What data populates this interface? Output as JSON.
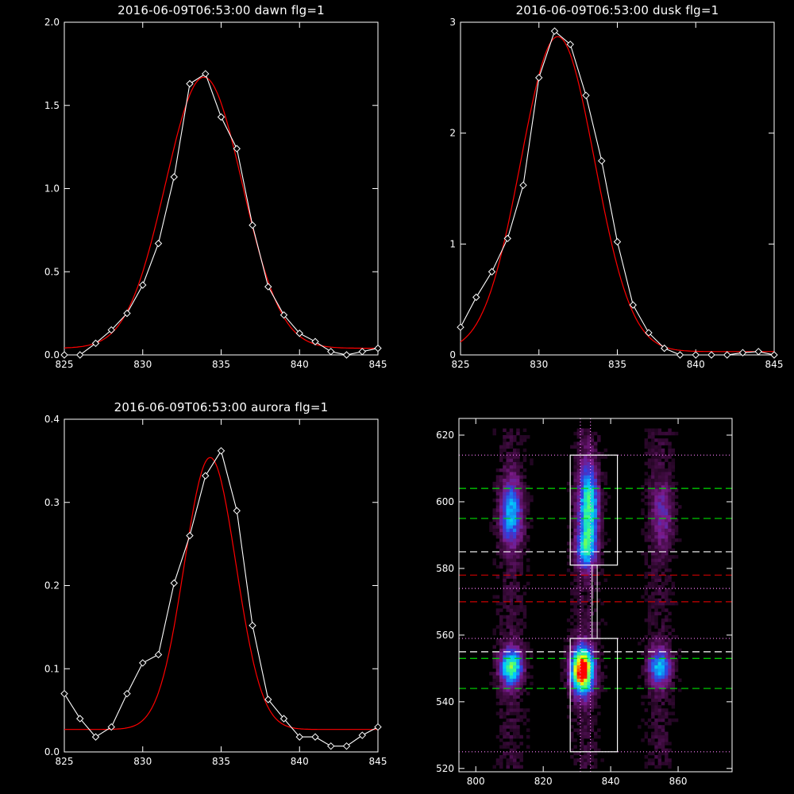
{
  "chart_data": [
    {
      "id": "dawn",
      "type": "line",
      "title": "2016-06-09T06:53:00 dawn flg=1",
      "xlim": [
        825,
        845
      ],
      "ylim": [
        0,
        2.0
      ],
      "xticks": [
        825,
        830,
        835,
        840,
        845
      ],
      "xtick_labels": [
        "825",
        "830",
        "835",
        "840",
        "845"
      ],
      "yticks": [
        0,
        0.5,
        1.0,
        1.5,
        2.0
      ],
      "ytick_labels": [
        "0.0",
        "0.5",
        "1.0",
        "1.5",
        "2.0"
      ],
      "series": [
        {
          "role": "observed",
          "color": "#ffffff",
          "marker": "diamond",
          "x": [
            825,
            826,
            827,
            828,
            829,
            830,
            831,
            832,
            833,
            834,
            835,
            836,
            837,
            838,
            839,
            840,
            841,
            842,
            843,
            844,
            845
          ],
          "y": [
            0.0,
            0.0,
            0.07,
            0.15,
            0.25,
            0.42,
            0.67,
            1.07,
            1.63,
            1.69,
            1.43,
            1.24,
            0.78,
            0.41,
            0.24,
            0.13,
            0.08,
            0.02,
            0.0,
            0.02,
            0.04
          ]
        },
        {
          "role": "fit",
          "color": "#ff0000",
          "model": "gaussian",
          "amplitude": 1.63,
          "center": 833.9,
          "sigma": 2.45,
          "baseline": 0.04
        }
      ]
    },
    {
      "id": "dusk",
      "type": "line",
      "title": "2016-06-09T06:53:00 dusk flg=1",
      "xlim": [
        825,
        845
      ],
      "ylim": [
        0,
        3
      ],
      "xticks": [
        825,
        830,
        835,
        840,
        845
      ],
      "xtick_labels": [
        "825",
        "830",
        "835",
        "840",
        "845"
      ],
      "yticks": [
        0,
        1,
        2,
        3
      ],
      "ytick_labels": [
        "0",
        "1",
        "2",
        "3"
      ],
      "series": [
        {
          "role": "observed",
          "color": "#ffffff",
          "marker": "diamond",
          "x": [
            825,
            826,
            827,
            828,
            829,
            830,
            831,
            832,
            833,
            834,
            835,
            836,
            837,
            838,
            839,
            840,
            841,
            842,
            843,
            844,
            845
          ],
          "y": [
            0.25,
            0.52,
            0.75,
            1.05,
            1.53,
            2.5,
            2.92,
            2.8,
            2.34,
            1.75,
            1.02,
            0.45,
            0.2,
            0.06,
            0.0,
            0.0,
            0.0,
            0.0,
            0.02,
            0.03,
            0.0
          ]
        },
        {
          "role": "fit",
          "color": "#ff0000",
          "model": "gaussian",
          "amplitude": 2.84,
          "center": 831.2,
          "sigma": 2.35,
          "baseline": 0.03
        }
      ]
    },
    {
      "id": "aurora",
      "type": "line",
      "title": "2016-06-09T06:53:00 aurora flg=1",
      "xlim": [
        825,
        845
      ],
      "ylim": [
        0,
        0.4
      ],
      "xticks": [
        825,
        830,
        835,
        840,
        845
      ],
      "xtick_labels": [
        "825",
        "830",
        "835",
        "840",
        "845"
      ],
      "yticks": [
        0,
        0.1,
        0.2,
        0.3,
        0.4
      ],
      "ytick_labels": [
        "0.0",
        "0.1",
        "0.2",
        "0.3",
        "0.4"
      ],
      "series": [
        {
          "role": "observed",
          "color": "#ffffff",
          "marker": "diamond",
          "x": [
            825,
            826,
            827,
            828,
            829,
            830,
            831,
            832,
            833,
            834,
            835,
            836,
            837,
            838,
            839,
            840,
            841,
            842,
            843,
            844,
            845
          ],
          "y": [
            0.07,
            0.04,
            0.018,
            0.03,
            0.07,
            0.107,
            0.117,
            0.203,
            0.26,
            0.332,
            0.362,
            0.29,
            0.152,
            0.063,
            0.04,
            0.018,
            0.018,
            0.007,
            0.007,
            0.02,
            0.03
          ]
        },
        {
          "role": "fit",
          "color": "#ff0000",
          "model": "gaussian",
          "amplitude": 0.327,
          "center": 834.3,
          "sigma": 1.65,
          "baseline": 0.027
        }
      ]
    },
    {
      "id": "spectrogram",
      "type": "heatmap",
      "xlim": [
        795,
        876
      ],
      "ylim": [
        519,
        625
      ],
      "xticks": [
        800,
        820,
        840,
        860
      ],
      "xtick_labels": [
        "800",
        "820",
        "840",
        "860"
      ],
      "yticks": [
        520,
        540,
        560,
        580,
        600,
        620
      ],
      "ytick_labels": [
        "520",
        "540",
        "560",
        "580",
        "600",
        "620"
      ],
      "colormap": [
        "#000000",
        "#3a0a3a",
        "#7a1a8a",
        "#3040e0",
        "#00c8ff",
        "#40ff80",
        "#ffff00",
        "#ff0000"
      ],
      "blobs": [
        {
          "x": 810,
          "y": 596,
          "sx": 2.5,
          "sy": 7,
          "level": 0.45
        },
        {
          "x": 810,
          "y": 550,
          "sx": 2.5,
          "sy": 4,
          "level": 0.62
        },
        {
          "x": 833,
          "y": 598,
          "sx": 2.2,
          "sy": 9,
          "level": 0.6
        },
        {
          "x": 832,
          "y": 585,
          "sx": 2.2,
          "sy": 4,
          "level": 0.38
        },
        {
          "x": 831,
          "y": 549,
          "sx": 2.5,
          "sy": 5,
          "level": 0.98
        },
        {
          "x": 855,
          "y": 596,
          "sx": 2.5,
          "sy": 7,
          "level": 0.22
        },
        {
          "x": 854,
          "y": 550,
          "sx": 2.5,
          "sy": 4,
          "level": 0.45
        }
      ],
      "boxes": [
        {
          "x": [
            828,
            842
          ],
          "y": [
            581,
            614
          ]
        },
        {
          "x": [
            828,
            842
          ],
          "y": [
            525,
            559
          ]
        }
      ],
      "connector_x": [
        834.5,
        836
      ],
      "connector_y": [
        559,
        581
      ],
      "hlines": [
        {
          "y": 614,
          "color": "#ff80ff",
          "style": "dotted"
        },
        {
          "y": 604,
          "color": "#00dd00",
          "style": "dashed"
        },
        {
          "y": 595,
          "color": "#00dd00",
          "style": "dashed"
        },
        {
          "y": 585,
          "color": "#ffffff",
          "style": "dashed"
        },
        {
          "y": 578,
          "color": "#cc0000",
          "style": "dashed"
        },
        {
          "y": 574,
          "color": "#ff80ff",
          "style": "dotted"
        },
        {
          "y": 570,
          "color": "#cc0000",
          "style": "dashed"
        },
        {
          "y": 559,
          "color": "#ff80ff",
          "style": "dotted"
        },
        {
          "y": 555,
          "color": "#ffffff",
          "style": "dashed"
        },
        {
          "y": 553,
          "color": "#00dd00",
          "style": "dashed"
        },
        {
          "y": 544,
          "color": "#00dd00",
          "style": "dashed"
        },
        {
          "y": 525,
          "color": "#ff80ff",
          "style": "dotted"
        }
      ],
      "vlines": [
        {
          "x": 831,
          "color": "#ff80ff",
          "style": "dotted"
        },
        {
          "x": 834,
          "color": "#ff80ff",
          "style": "dotted"
        }
      ]
    }
  ]
}
